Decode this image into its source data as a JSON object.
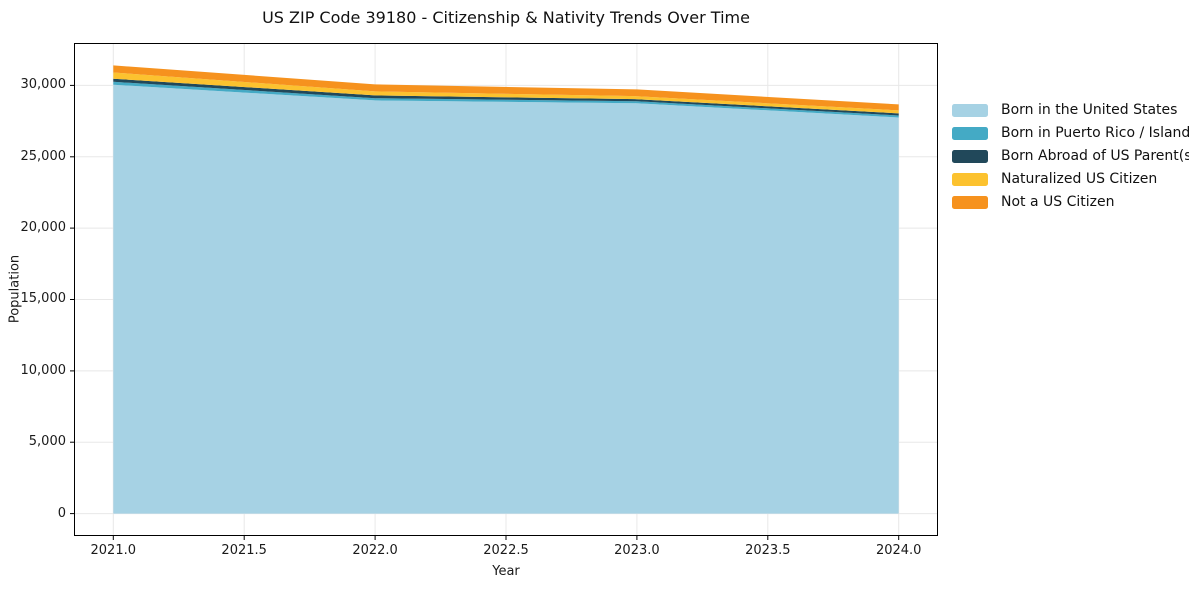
{
  "chart_data": {
    "type": "area",
    "stacked": true,
    "title": "US ZIP Code 39180 - Citizenship & Nativity Trends Over Time",
    "xlabel": "Year",
    "ylabel": "Population",
    "x": [
      2021,
      2022,
      2023,
      2024
    ],
    "series": [
      {
        "name": "Born in the United States",
        "color": "#a6d2e4",
        "values": [
          30050,
          28950,
          28750,
          27750
        ]
      },
      {
        "name": "Born in Puerto Rico / Islands",
        "color": "#44aac5",
        "values": [
          200,
          150,
          140,
          140
        ]
      },
      {
        "name": "Born Abroad of US Parent(s)",
        "color": "#21485a",
        "values": [
          220,
          200,
          140,
          150
        ]
      },
      {
        "name": "Naturalized US Citizen",
        "color": "#fcc22f",
        "values": [
          430,
          280,
          210,
          210
        ]
      },
      {
        "name": "Not a US Citizen",
        "color": "#f6921e",
        "values": [
          500,
          490,
          480,
          420
        ]
      }
    ],
    "xlim": [
      2020.85,
      2024.15
    ],
    "ylim": [
      -1570,
      32970
    ],
    "xticks": {
      "values": [
        2021.0,
        2021.5,
        2022.0,
        2022.5,
        2023.0,
        2023.5,
        2024.0
      ],
      "labels": [
        "2021.0",
        "2021.5",
        "2022.0",
        "2022.5",
        "2023.0",
        "2023.5",
        "2024.0"
      ]
    },
    "yticks": {
      "values": [
        0,
        5000,
        10000,
        15000,
        20000,
        25000,
        30000
      ],
      "labels": [
        "0",
        "5,000",
        "10,000",
        "15,000",
        "20,000",
        "25,000",
        "30,000"
      ]
    },
    "grid": true,
    "grid_color": "#e8e8e8",
    "spine_color": "#000000",
    "legend_position": "right"
  }
}
